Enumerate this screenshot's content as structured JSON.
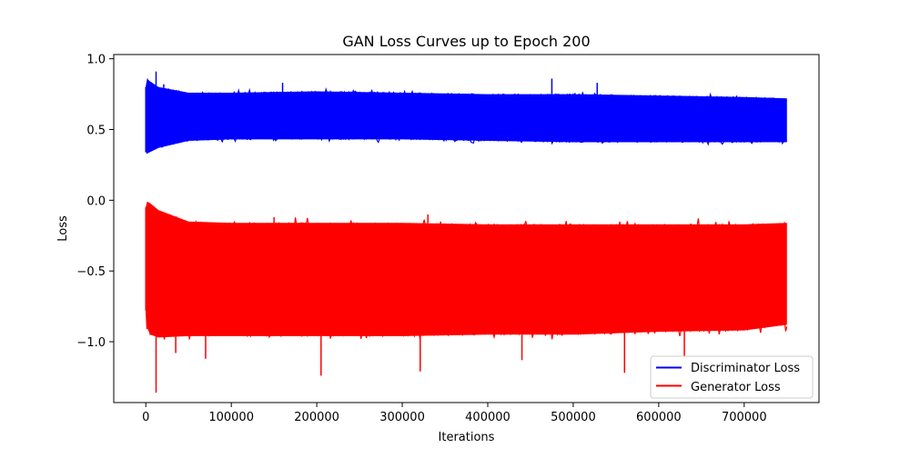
{
  "chart_data": {
    "type": "line",
    "title": "GAN Loss Curves up to Epoch 200",
    "xlabel": "Iterations",
    "ylabel": "Loss",
    "xlim": [
      -37500,
      787500
    ],
    "ylim": [
      -1.43,
      1.03
    ],
    "x_ticks": [
      0,
      100000,
      200000,
      300000,
      400000,
      500000,
      600000,
      700000
    ],
    "x_tick_labels": [
      "0",
      "100000",
      "200000",
      "300000",
      "400000",
      "500000",
      "600000",
      "700000"
    ],
    "y_ticks": [
      1.0,
      0.5,
      0.0,
      -0.5,
      -1.0
    ],
    "y_tick_labels": [
      "1.0",
      "0.5",
      "0.0",
      "−0.5",
      "−1.0"
    ],
    "grid": false,
    "legend_position": "lower-right",
    "x_range": [
      0,
      750000
    ],
    "series": [
      {
        "name": "Discriminator Loss",
        "color": "#0000ff",
        "band_x": [
          0,
          1500,
          5000,
          15000,
          50000,
          100000,
          200000,
          300000,
          400000,
          500000,
          600000,
          700000,
          750000
        ],
        "band_lower": [
          0.34,
          0.33,
          0.34,
          0.37,
          0.42,
          0.43,
          0.43,
          0.43,
          0.42,
          0.41,
          0.41,
          0.41,
          0.41
        ],
        "band_upper": [
          0.8,
          0.86,
          0.84,
          0.8,
          0.76,
          0.76,
          0.77,
          0.76,
          0.75,
          0.75,
          0.74,
          0.73,
          0.72
        ],
        "spikes_up": [
          [
            2000,
            0.86
          ],
          [
            12000,
            0.91
          ],
          [
            21000,
            0.82
          ],
          [
            160000,
            0.83
          ],
          [
            475000,
            0.86
          ],
          [
            528000,
            0.83
          ]
        ],
        "spikes_down": []
      },
      {
        "name": "Generator Loss",
        "color": "#ff0000",
        "band_x": [
          0,
          1500,
          5000,
          15000,
          50000,
          100000,
          200000,
          300000,
          400000,
          500000,
          600000,
          700000,
          750000
        ],
        "band_lower": [
          -0.78,
          -0.9,
          -0.95,
          -0.97,
          -0.96,
          -0.96,
          -0.96,
          -0.96,
          -0.95,
          -0.95,
          -0.93,
          -0.92,
          -0.88
        ],
        "band_upper": [
          -0.05,
          -0.01,
          -0.02,
          -0.07,
          -0.15,
          -0.16,
          -0.16,
          -0.16,
          -0.17,
          -0.17,
          -0.17,
          -0.17,
          -0.16
        ],
        "spikes_up": [
          [
            330000,
            -0.1
          ],
          [
            150000,
            -0.12
          ]
        ],
        "spikes_down": [
          [
            12000,
            -1.36
          ],
          [
            205000,
            -1.24
          ],
          [
            321000,
            -1.21
          ],
          [
            560000,
            -1.22
          ],
          [
            70000,
            -1.12
          ],
          [
            440000,
            -1.13
          ],
          [
            35000,
            -1.08
          ],
          [
            630000,
            -1.1
          ]
        ]
      }
    ]
  }
}
